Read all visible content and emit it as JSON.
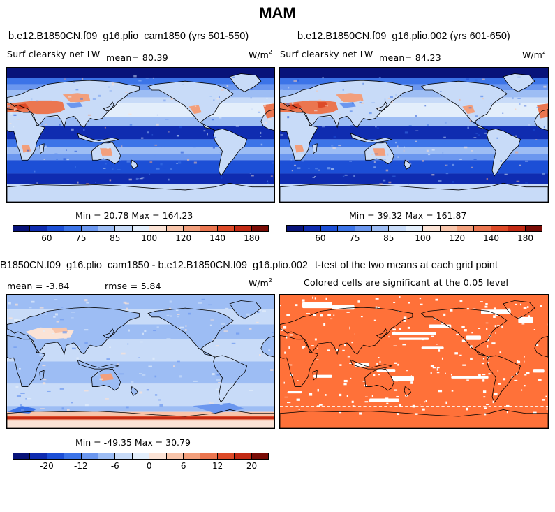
{
  "title": "MAM",
  "panels": [
    {
      "case": "b.e12.B1850CN.f09_g16.plio_cam1850 (yrs 501-550)",
      "variable": "Surf clearsky net LW",
      "mean_label": "mean=  80.39",
      "units_base": "W/m",
      "units_exp": "2",
      "minmax": "Min =  20.78 Max = 164.23",
      "colorbar_labels": [
        "60",
        "75",
        "85",
        "100",
        "120",
        "140",
        "180"
      ]
    },
    {
      "case": "b.e12.B1850CN.f09_g16.plio.002 (yrs 601-650)",
      "variable": "Surf clearsky net LW",
      "mean_label": "mean=  84.23",
      "units_base": "W/m",
      "units_exp": "2",
      "minmax": "Min =  39.32 Max = 161.87",
      "colorbar_labels": [
        "60",
        "75",
        "85",
        "100",
        "120",
        "140",
        "180"
      ]
    },
    {
      "case": "B1850CN.f09_g16.plio_cam1850 - b.e12.B1850CN.f09_g16.plio.002",
      "mean_label": "mean =  -3.84",
      "rmse_label": "rmse =   5.84",
      "units_base": "W/m",
      "units_exp": "2",
      "minmax": "Min = -49.35 Max =  30.79",
      "colorbar_labels": [
        "-20",
        "-12",
        "-6",
        "0",
        "6",
        "12",
        "20"
      ]
    },
    {
      "case": "t-test of the two means at each grid point",
      "subtitle": "Colored cells are significant at the 0.05 level"
    }
  ],
  "colors": {
    "abs_scale": [
      "#08137a",
      "#0f2cb0",
      "#1c4fd6",
      "#3c74e8",
      "#6b97ef",
      "#9dbdf4",
      "#c8dbf8",
      "#e3eefb",
      "#fbe3d6",
      "#f8c5ab",
      "#f29f7c",
      "#eb7650",
      "#dd4a28",
      "#c22a14",
      "#7a0c06"
    ],
    "diff_scale": [
      "#08137a",
      "#0f2cb0",
      "#1c4fd6",
      "#3c74e8",
      "#6b97ef",
      "#9dbdf4",
      "#c8dbf8",
      "#e3eefb",
      "#fbe3d6",
      "#f8c5ab",
      "#f29f7c",
      "#eb7650",
      "#dd4a28",
      "#c22a14",
      "#7a0c06"
    ],
    "significance": "#ff7139"
  }
}
